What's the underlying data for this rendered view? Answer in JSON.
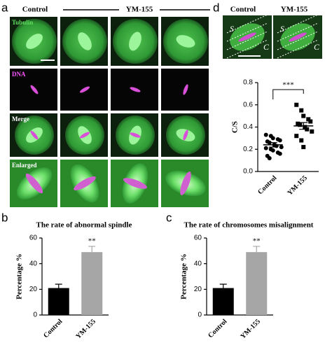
{
  "panel_labels": [
    "a",
    "b",
    "c",
    "d"
  ],
  "panel_a": {
    "column_headers": [
      "Control",
      "YM-155"
    ],
    "row_labels": [
      "Tubulin",
      "DNA",
      "Merge",
      "Enlarged"
    ]
  },
  "panel_d_images": {
    "column_headers": [
      "Control",
      "YM-155"
    ],
    "region_labels": [
      "S",
      "C",
      "S",
      "C"
    ]
  },
  "chart_data": [
    {
      "type": "bar",
      "title": "The rate of abnormal spindle",
      "ylabel": "Percentage %",
      "categories": [
        "Control",
        "YM-155"
      ],
      "values": [
        21,
        49
      ],
      "errors": [
        3,
        4.5
      ],
      "colors": [
        "#000000",
        "#a6a6a6"
      ],
      "ylim": [
        0,
        60
      ],
      "yticks": [
        0,
        20,
        40,
        60
      ],
      "annotation": "**"
    },
    {
      "type": "bar",
      "title": "The rate of chromosomes misalignment",
      "ylabel": "Percentage %",
      "categories": [
        "Control",
        "YM-155"
      ],
      "values": [
        21,
        49
      ],
      "errors": [
        3,
        4.5
      ],
      "colors": [
        "#000000",
        "#a6a6a6"
      ],
      "ylim": [
        0,
        60
      ],
      "yticks": [
        0,
        20,
        40,
        60
      ],
      "annotation": "**"
    },
    {
      "type": "dot",
      "ylabel": "C/S",
      "categories": [
        "Control",
        "YM-155"
      ],
      "groups": [
        {
          "marker": "circle",
          "values": [
            0.33,
            0.32,
            0.3,
            0.29,
            0.28,
            0.27,
            0.26,
            0.24,
            0.23,
            0.22,
            0.21,
            0.2,
            0.19,
            0.17,
            0.16,
            0.14,
            0.12
          ]
        },
        {
          "marker": "square",
          "values": [
            0.6,
            0.55,
            0.5,
            0.47,
            0.45,
            0.43,
            0.42,
            0.4,
            0.38,
            0.36,
            0.32,
            0.28,
            0.22
          ]
        }
      ],
      "means": [
        0.24,
        0.41
      ],
      "errors": [
        0.02,
        0.03
      ],
      "color": "#000000",
      "ylim": [
        0,
        0.8
      ],
      "yticks": [
        {
          "value": 0,
          "label": "0.0"
        },
        0.2,
        0.4,
        0.6,
        0.8
      ],
      "annotation": "***"
    }
  ]
}
